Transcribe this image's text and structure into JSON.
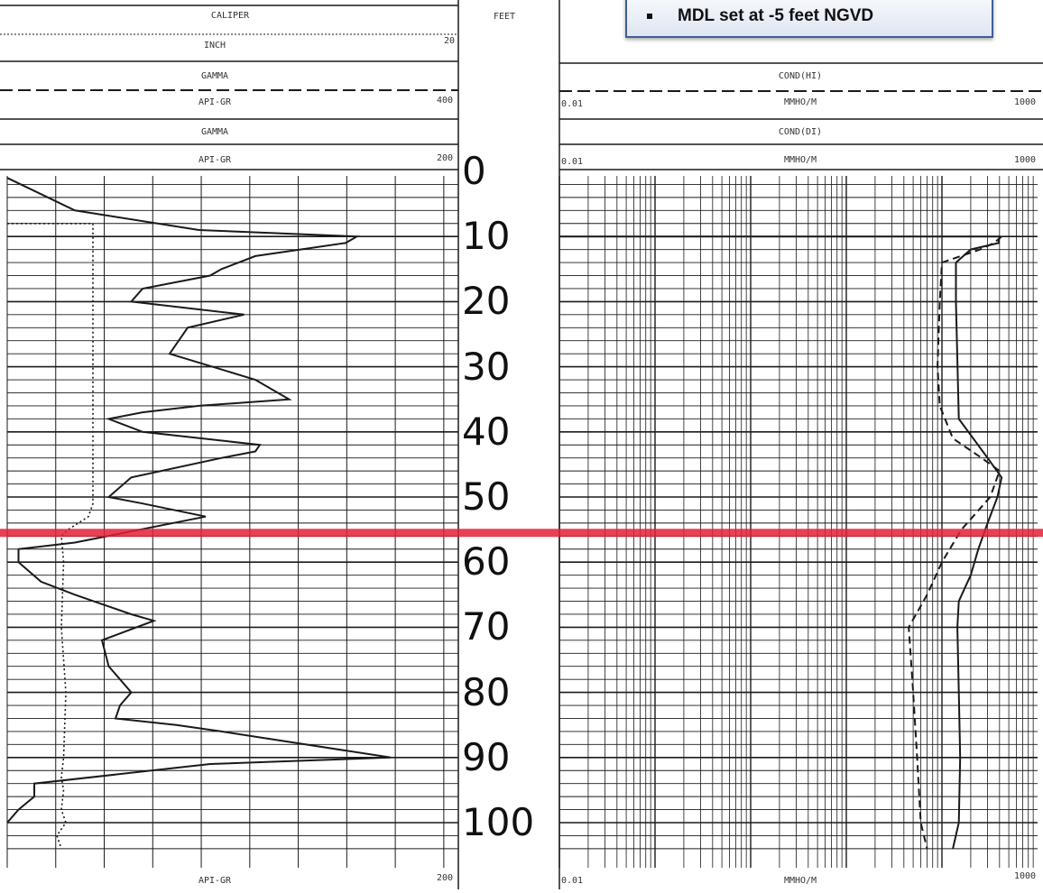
{
  "callout": {
    "text": "MDL set at -5 feet NGVD"
  },
  "left_track": {
    "curve1": {
      "name": "CALIPER",
      "unit": "INCH",
      "scale_max": "20"
    },
    "curve2": {
      "name": "GAMMA",
      "unit": "API-GR",
      "scale_max": "400"
    },
    "curve3": {
      "name": "GAMMA",
      "unit": "API-GR",
      "scale_max": "200"
    },
    "footer": {
      "unit": "API-GR",
      "scale_max": "200"
    }
  },
  "depth_track": {
    "label": "FEET"
  },
  "right_track": {
    "curve1": {
      "name": "COND(HI)",
      "unit": "MMHO/M",
      "scale_min": "0.01",
      "scale_max": "1000"
    },
    "curve2": {
      "name": "COND(DI)",
      "unit": "MMHO/M",
      "scale_min": "0.01",
      "scale_max": "1000"
    },
    "footer": {
      "unit": "MMHO/M",
      "scale_min": "0.01",
      "scale_max": "1000"
    }
  },
  "colors": {
    "ink": "#1a1a1a",
    "marker": "#e0203a",
    "callout_border": "#3e5f97"
  },
  "chart_data": [
    {
      "type": "line",
      "title": "",
      "xlabel": "API-GR",
      "ylabel": "FEET",
      "xlim": [
        0,
        200
      ],
      "ylim": [
        105,
        -2
      ],
      "grid": true,
      "series": [
        {
          "name": "GAMMA",
          "style": "solid",
          "x": [
            0,
            30,
            85,
            155,
            150,
            110,
            95,
            90,
            60,
            55,
            105,
            80,
            72,
            110,
            125,
            85,
            60,
            45,
            60,
            112,
            110,
            95,
            55,
            45,
            60,
            88,
            30,
            5,
            5,
            15,
            30,
            55,
            65,
            42,
            45,
            55,
            50,
            48,
            75,
            95,
            170,
            90,
            12,
            12,
            5,
            0
          ],
          "depth": [
            1,
            6,
            9,
            10,
            11,
            13,
            15,
            16,
            18,
            20,
            22,
            24,
            28,
            32,
            35,
            36,
            37,
            38,
            40,
            42,
            43,
            44,
            47,
            50,
            51,
            53,
            57,
            58,
            60,
            63,
            65,
            68,
            69,
            72,
            76,
            80,
            82,
            84,
            85,
            86,
            90,
            91,
            94,
            96,
            98,
            100
          ]
        },
        {
          "name": "CALIPER",
          "style": "dotted",
          "x": [
            0,
            38,
            38,
            36,
            27,
            24,
            25,
            24,
            26,
            25,
            24,
            25,
            24,
            26,
            22,
            24
          ],
          "depth": [
            8,
            8,
            51,
            53,
            55,
            56,
            60,
            70,
            80,
            90,
            93,
            95,
            98,
            100,
            102,
            104
          ]
        }
      ]
    },
    {
      "type": "line",
      "title": "",
      "xlabel": "MMHO/M",
      "ylabel": "FEET",
      "xscale": "log",
      "xlim": [
        0.01,
        1000
      ],
      "ylim": [
        105,
        -2
      ],
      "grid": true,
      "series": [
        {
          "name": "COND(DI)",
          "style": "solid",
          "x": [
            0.01,
            400,
            390,
            200,
            140,
            140,
            150,
            300,
            420,
            380,
            300,
            240,
            200,
            150,
            145,
            150,
            155,
            150,
            130
          ],
          "depth": [
            10,
            10,
            11,
            12,
            14,
            20,
            38,
            44,
            47,
            50,
            54,
            58,
            62,
            66,
            70,
            80,
            90,
            100,
            104
          ]
        },
        {
          "name": "COND(HI)",
          "style": "dashed",
          "x": [
            420,
            350,
            250,
            100,
            95,
            90,
            95,
            130,
            260,
            400,
            320,
            160,
            100,
            70,
            45,
            50,
            55,
            60,
            70
          ],
          "depth": [
            10,
            11,
            12,
            14,
            20,
            30,
            36,
            41,
            44,
            46,
            50,
            55,
            60,
            65,
            70,
            80,
            90,
            100,
            104
          ]
        }
      ]
    }
  ]
}
